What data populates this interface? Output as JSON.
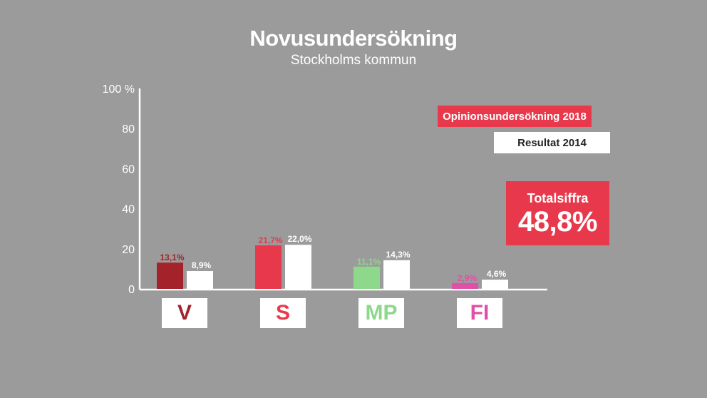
{
  "header": {
    "title": "Novusundersökning",
    "subtitle": "Stockholms kommun"
  },
  "legend": {
    "label_2018": "Opinionsundersökning 2018",
    "label_2014": "Resultat 2014"
  },
  "total": {
    "label": "Totalsiffra",
    "value": "48,8%"
  },
  "colors": {
    "background": "#9b9b9b",
    "accent": "#e8394c",
    "result_2014": "#ffffff"
  },
  "chart_data": {
    "type": "bar",
    "categories": [
      "V",
      "S",
      "MP",
      "FI"
    ],
    "category_colors": [
      "#a4232b",
      "#e8394c",
      "#8dd88a",
      "#e050a8"
    ],
    "series": [
      {
        "name": "Opinionsundersökning 2018",
        "values": [
          13.1,
          21.7,
          11.1,
          2.9
        ],
        "labels": [
          "13,1%",
          "21,7%",
          "11,1%",
          "2,9%"
        ]
      },
      {
        "name": "Resultat 2014",
        "values": [
          8.9,
          22.0,
          14.3,
          4.6
        ],
        "labels": [
          "8,9%",
          "22,0%",
          "14,3%",
          "4,6%"
        ]
      }
    ],
    "ylim": [
      0,
      100
    ],
    "yticks": [
      0,
      20,
      40,
      60,
      80,
      100
    ],
    "ytick_labels": [
      "0",
      "20",
      "40",
      "60",
      "80",
      "100 %"
    ],
    "grid": false,
    "legend_position": "top-right"
  }
}
